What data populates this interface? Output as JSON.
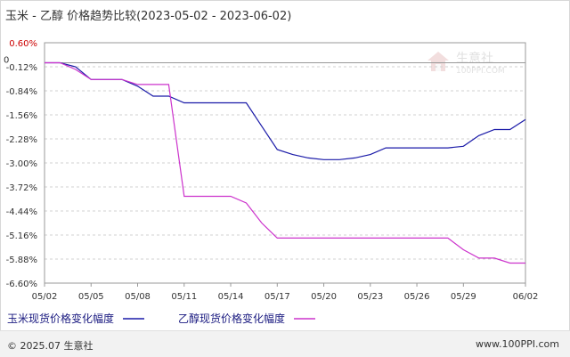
{
  "title": "玉米 - 乙醇  价格趋势比较(2023-05-02 - 2023-06-02)",
  "footer": {
    "copyright": "© 2025.07 生意社",
    "site": "www.100PPI.com"
  },
  "watermark": {
    "name": "生意社",
    "url": "100PPI.COM"
  },
  "chart_data": {
    "type": "line",
    "title": "玉米 - 乙醇  价格趋势比较(2023-05-02 - 2023-06-02)",
    "x": [
      "05/02",
      "05/03",
      "05/04",
      "05/05",
      "05/06",
      "05/07",
      "05/08",
      "05/09",
      "05/10",
      "05/11",
      "05/12",
      "05/13",
      "05/14",
      "05/15",
      "05/16",
      "05/17",
      "05/18",
      "05/19",
      "05/20",
      "05/21",
      "05/22",
      "05/23",
      "05/24",
      "05/25",
      "05/26",
      "05/27",
      "05/28",
      "05/29",
      "05/30",
      "05/31",
      "06/01",
      "06/02"
    ],
    "x_tick_labels": [
      "05/02",
      "05/05",
      "05/08",
      "05/11",
      "05/14",
      "05/17",
      "05/20",
      "05/23",
      "05/26",
      "05/29",
      "06/02"
    ],
    "ylim": [
      -6.6,
      0.6
    ],
    "y_tick_labels": [
      "0.60%",
      "-0.12%",
      "-0.84%",
      "-1.56%",
      "-2.28%",
      "-3.00%",
      "-3.72%",
      "-4.44%",
      "-5.16%",
      "-5.88%",
      "-6.60%"
    ],
    "y_zero_label": "0",
    "grid": "horizontal dashed",
    "legend_position": "bottom",
    "series": [
      {
        "name": "玉米现货价格变化幅度",
        "color": "#1a1aa8",
        "values": [
          0,
          0,
          -0.12,
          -0.5,
          -0.5,
          -0.5,
          -0.7,
          -1.0,
          -1.0,
          -1.2,
          -1.2,
          -1.2,
          -1.2,
          -1.2,
          -1.9,
          -2.6,
          -2.75,
          -2.85,
          -2.9,
          -2.9,
          -2.85,
          -2.75,
          -2.55,
          -2.55,
          -2.55,
          -2.55,
          -2.55,
          -2.5,
          -2.18,
          -2.0,
          -2.0,
          -1.7
        ]
      },
      {
        "name": "乙醇现货价格变化幅度",
        "color": "#cc33cc",
        "values": [
          0,
          0,
          -0.2,
          -0.5,
          -0.5,
          -0.5,
          -0.65,
          -0.65,
          -0.65,
          -4.0,
          -4.0,
          -4.0,
          -4.0,
          -4.2,
          -4.8,
          -5.25,
          -5.25,
          -5.25,
          -5.25,
          -5.25,
          -5.25,
          -5.25,
          -5.25,
          -5.25,
          -5.25,
          -5.25,
          -5.25,
          -5.6,
          -5.85,
          -5.85,
          -6.0,
          -6.0
        ]
      }
    ]
  }
}
